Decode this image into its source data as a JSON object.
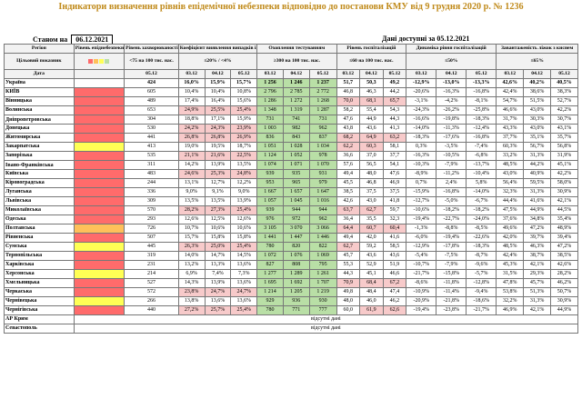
{
  "title": "Індикатори визначення рівнів епідемічної небезпеки відповідно до постанови КМУ від 9 грудня 2020 р. № 1236",
  "state_label": "Станом на",
  "state_date": "06.12.2021",
  "data_available": "Дані доступні за 05.12.2021",
  "headers": {
    "region": "Регіон",
    "level": "Рівень епіднебезпеки",
    "morbidity": "Рівень захворюваності",
    "morbidity_sub": "<75 на 100 тис. нас.",
    "coef": "Коефіцієнт виявлення випадків інфікування",
    "coef_sub": "≤20% / <4%",
    "testing": "Охоплення тестуванням",
    "testing_sub": "≥300 на 100 тис. нас.",
    "hosp": "Рівень госпіталізацій",
    "hosp_sub": "≤60 на 100 тис. нас.",
    "dyn": "Динаміка рівня госпіталізацій",
    "dyn_sub": "≤50%",
    "beds": "Завантаженість ліжок з киснем",
    "beds_sub": "≤65%",
    "target": "Цільовий показник",
    "date": "Дата",
    "date_single": "05.12",
    "dates": [
      "03.12",
      "04.12",
      "05.12"
    ]
  },
  "rows": [
    {
      "name": "Україна",
      "level": "",
      "m": "424",
      "c": [
        "16,0%",
        "15,9%",
        "15,7%"
      ],
      "t": [
        "1 256",
        "1 246",
        "1 237"
      ],
      "h": [
        "51,7",
        "50,3",
        "49,2"
      ],
      "d": [
        "-12,9%",
        "-13,0%",
        "-13,3%"
      ],
      "b": [
        "42,6%",
        "40,2%",
        "40,5%"
      ]
    },
    {
      "name": "КИЇВ",
      "level": "red",
      "m": "605",
      "c": [
        "10,4%",
        "10,4%",
        "10,8%"
      ],
      "t": [
        "2 796",
        "2 785",
        "2 772"
      ],
      "h": [
        "46,8",
        "46,3",
        "44,2"
      ],
      "d": [
        "-20,6%",
        "-16,3%",
        "-16,8%"
      ],
      "b": [
        "42,4%",
        "38,6%",
        "38,3%"
      ]
    },
    {
      "name": "Вінницька",
      "level": "red",
      "m": "489",
      "c": [
        "17,4%",
        "16,4%",
        "15,6%"
      ],
      "t": [
        "1 286",
        "1 272",
        "1 268"
      ],
      "h": [
        "70,0",
        "68,1",
        "65,7"
      ],
      "d": [
        "-3,1%",
        "-4,2%",
        "-8,1%"
      ],
      "b": [
        "54,7%",
        "51,5%",
        "52,7%"
      ]
    },
    {
      "name": "Волинська",
      "level": "red",
      "m": "653",
      "c": [
        "24,9%",
        "25,5%",
        "25,4%"
      ],
      "t": [
        "1 348",
        "1 319",
        "1 287"
      ],
      "h": [
        "58,2",
        "55,4",
        "54,3"
      ],
      "d": [
        "-24,3%",
        "-26,2%",
        "-25,8%"
      ],
      "b": [
        "46,6%",
        "43,0%",
        "42,2%"
      ]
    },
    {
      "name": "Дніпропетровська",
      "level": "red",
      "m": "304",
      "c": [
        "18,8%",
        "17,1%",
        "15,9%"
      ],
      "t": [
        "731",
        "741",
        "731"
      ],
      "h": [
        "47,6",
        "44,9",
        "44,3"
      ],
      "d": [
        "-16,6%",
        "-19,8%",
        "-18,3%"
      ],
      "b": [
        "31,7%",
        "30,3%",
        "30,7%"
      ]
    },
    {
      "name": "Донецька",
      "level": "red",
      "m": "530",
      "c": [
        "24,2%",
        "24,3%",
        "23,9%"
      ],
      "t": [
        "1 003",
        "982",
        "962"
      ],
      "h": [
        "43,8",
        "43,6",
        "41,3"
      ],
      "d": [
        "-14,0%",
        "-11,3%",
        "-12,4%"
      ],
      "b": [
        "43,3%",
        "43,0%",
        "43,1%"
      ]
    },
    {
      "name": "Житомирська",
      "level": "red",
      "m": "441",
      "c": [
        "26,8%",
        "26,8%",
        "26,9%"
      ],
      "t": [
        "836",
        "843",
        "837"
      ],
      "h": [
        "68,2",
        "64,9",
        "63,2"
      ],
      "d": [
        "-18,3%",
        "-17,6%",
        "-16,8%"
      ],
      "b": [
        "37,7%",
        "35,1%",
        "35,7%"
      ]
    },
    {
      "name": "Закарпатська",
      "level": "yellow",
      "m": "413",
      "c": [
        "19,0%",
        "19,5%",
        "18,7%"
      ],
      "t": [
        "1 051",
        "1 028",
        "1 034"
      ],
      "h": [
        "62,2",
        "60,3",
        "58,1"
      ],
      "d": [
        "0,3%",
        "-3,5%",
        "-7,4%"
      ],
      "b": [
        "60,3%",
        "56,7%",
        "56,8%"
      ]
    },
    {
      "name": "Запорізька",
      "level": "red",
      "m": "535",
      "c": [
        "21,1%",
        "21,6%",
        "22,5%"
      ],
      "t": [
        "1 124",
        "1 052",
        "978"
      ],
      "h": [
        "36,6",
        "37,0",
        "37,7"
      ],
      "d": [
        "-16,3%",
        "-10,5%",
        "-6,8%"
      ],
      "b": [
        "33,2%",
        "31,3%",
        "31,9%"
      ]
    },
    {
      "name": "Івано-Франківська",
      "level": "red",
      "m": "311",
      "c": [
        "14,2%",
        "13,9%",
        "13,5%"
      ],
      "t": [
        "1 074",
        "1 071",
        "1 070"
      ],
      "h": [
        "57,6",
        "56,5",
        "54,1"
      ],
      "d": [
        "-10,3%",
        "-7,9%",
        "-13,7%"
      ],
      "b": [
        "48,5%",
        "44,2%",
        "45,1%"
      ]
    },
    {
      "name": "Київська",
      "level": "red",
      "m": "483",
      "c": [
        "24,6%",
        "25,3%",
        "24,8%"
      ],
      "t": [
        "939",
        "935",
        "931"
      ],
      "h": [
        "49,4",
        "48,0",
        "47,6"
      ],
      "d": [
        "-8,9%",
        "-11,2%",
        "-10,4%"
      ],
      "b": [
        "43,0%",
        "40,9%",
        "42,2%"
      ]
    },
    {
      "name": "Кіровоградська",
      "level": "red",
      "m": "244",
      "c": [
        "13,1%",
        "12,7%",
        "12,2%"
      ],
      "t": [
        "953",
        "965",
        "979"
      ],
      "h": [
        "45,5",
        "46,8",
        "46,9"
      ],
      "d": [
        "0,7%",
        "2,4%",
        "5,8%"
      ],
      "b": [
        "56,4%",
        "59,5%",
        "58,0%"
      ]
    },
    {
      "name": "Луганська",
      "level": "red",
      "m": "336",
      "c": [
        "9,0%",
        "9,1%",
        "9,0%"
      ],
      "t": [
        "1 667",
        "1 657",
        "1 647"
      ],
      "h": [
        "38,5",
        "37,5",
        "37,5"
      ],
      "d": [
        "-15,9%",
        "-16,8%",
        "-14,0%"
      ],
      "b": [
        "32,3%",
        "31,3%",
        "30,9%"
      ]
    },
    {
      "name": "Львівська",
      "level": "red",
      "m": "309",
      "c": [
        "13,5%",
        "13,5%",
        "13,9%"
      ],
      "t": [
        "1 057",
        "1 045",
        "1 016"
      ],
      "h": [
        "42,6",
        "43,0",
        "41,8"
      ],
      "d": [
        "-12,7%",
        "-5,0%",
        "-6,7%"
      ],
      "b": [
        "44,4%",
        "41,6%",
        "42,1%"
      ]
    },
    {
      "name": "Миколаївська",
      "level": "red",
      "m": "570",
      "c": [
        "28,2%",
        "27,3%",
        "25,4%"
      ],
      "t": [
        "939",
        "944",
        "944"
      ],
      "h": [
        "63,7",
        "62,7",
        "59,7"
      ],
      "d": [
        "-10,6%",
        "-18,2%",
        "-18,2%"
      ],
      "b": [
        "47,5%",
        "44,9%",
        "44,5%"
      ]
    },
    {
      "name": "Одеська",
      "level": "red",
      "m": "293",
      "c": [
        "12,6%",
        "12,5%",
        "12,6%"
      ],
      "t": [
        "976",
        "972",
        "962"
      ],
      "h": [
        "36,4",
        "35,5",
        "32,3"
      ],
      "d": [
        "-19,4%",
        "-22,7%",
        "-24,0%"
      ],
      "b": [
        "37,6%",
        "34,8%",
        "35,4%"
      ]
    },
    {
      "name": "Полтавська",
      "level": "orange",
      "m": "726",
      "c": [
        "10,7%",
        "10,6%",
        "10,6%"
      ],
      "t": [
        "3 105",
        "3 070",
        "3 066"
      ],
      "h": [
        "64,4",
        "60,7",
        "60,4"
      ],
      "d": [
        "-1,3%",
        "-8,8%",
        "-8,5%"
      ],
      "b": [
        "49,6%",
        "47,2%",
        "48,9%"
      ]
    },
    {
      "name": "Рівненська",
      "level": "red",
      "m": "507",
      "c": [
        "15,7%",
        "15,8%",
        "15,8%"
      ],
      "t": [
        "1 441",
        "1 447",
        "1 446"
      ],
      "h": [
        "49,4",
        "42,0",
        "41,6"
      ],
      "d": [
        "-6,0%",
        "-19,4%",
        "-22,6%"
      ],
      "b": [
        "42,0%",
        "39,7%",
        "39,4%"
      ]
    },
    {
      "name": "Сумська",
      "level": "yellow",
      "m": "445",
      "c": [
        "26,3%",
        "25,0%",
        "25,4%"
      ],
      "t": [
        "780",
        "820",
        "822"
      ],
      "h": [
        "62,7",
        "59,2",
        "58,5"
      ],
      "d": [
        "-12,9%",
        "-17,8%",
        "-18,3%"
      ],
      "b": [
        "48,5%",
        "46,3%",
        "47,2%"
      ]
    },
    {
      "name": "Тернопільська",
      "level": "red",
      "m": "319",
      "c": [
        "14,0%",
        "14,7%",
        "14,5%"
      ],
      "t": [
        "1 072",
        "1 076",
        "1 069"
      ],
      "h": [
        "45,7",
        "43,6",
        "43,6"
      ],
      "d": [
        "-5,4%",
        "-7,5%",
        "-8,7%"
      ],
      "b": [
        "42,4%",
        "38,7%",
        "38,5%"
      ]
    },
    {
      "name": "Харківська",
      "level": "red",
      "m": "231",
      "c": [
        "13,2%",
        "13,3%",
        "13,6%"
      ],
      "t": [
        "827",
        "808",
        "795"
      ],
      "h": [
        "55,3",
        "52,9",
        "51,9"
      ],
      "d": [
        "-10,7%",
        "-7,9%",
        "-9,6%"
      ],
      "b": [
        "45,3%",
        "42,1%",
        "42,6%"
      ]
    },
    {
      "name": "Херсонська",
      "level": "yellow",
      "m": "214",
      "c": [
        "6,9%",
        "7,4%",
        "7,3%"
      ],
      "t": [
        "1 277",
        "1 289",
        "1 261"
      ],
      "h": [
        "44,3",
        "45,1",
        "46,6"
      ],
      "d": [
        "-21,7%",
        "-15,8%",
        "-5,7%"
      ],
      "b": [
        "31,5%",
        "29,3%",
        "28,2%"
      ]
    },
    {
      "name": "Хмельницька",
      "level": "red",
      "m": "527",
      "c": [
        "14,3%",
        "13,9%",
        "13,6%"
      ],
      "t": [
        "1 695",
        "1 692",
        "1 707"
      ],
      "h": [
        "70,9",
        "68,4",
        "67,2"
      ],
      "d": [
        "-8,6%",
        "-11,8%",
        "-12,8%"
      ],
      "b": [
        "47,8%",
        "45,7%",
        "46,2%"
      ]
    },
    {
      "name": "Черкаська",
      "level": "red",
      "m": "572",
      "c": [
        "23,8%",
        "24,7%",
        "24,7%"
      ],
      "t": [
        "1 214",
        "1 205",
        "1 219"
      ],
      "h": [
        "49,8",
        "48,4",
        "47,4"
      ],
      "d": [
        "-10,9%",
        "-11,4%",
        "-9,4%"
      ],
      "b": [
        "53,8%",
        "51,3%",
        "50,7%"
      ]
    },
    {
      "name": "Чернівецька",
      "level": "yellow",
      "m": "266",
      "c": [
        "13,8%",
        "13,6%",
        "13,6%"
      ],
      "t": [
        "929",
        "936",
        "930"
      ],
      "h": [
        "48,0",
        "46,0",
        "46,2"
      ],
      "d": [
        "-20,9%",
        "-21,8%",
        "-18,6%"
      ],
      "b": [
        "32,2%",
        "31,3%",
        "30,9%"
      ]
    },
    {
      "name": "Чернігівська",
      "level": "red",
      "m": "440",
      "c": [
        "27,2%",
        "25,7%",
        "25,4%"
      ],
      "t": [
        "780",
        "771",
        "777"
      ],
      "h": [
        "60,0",
        "61,9",
        "62,6"
      ],
      "d": [
        "-19,4%",
        "-23,8%",
        "-21,7%"
      ],
      "b": [
        "46,9%",
        "42,1%",
        "44,9%"
      ]
    }
  ],
  "absent": [
    {
      "name": "АР Крим",
      "text": "відсутні дані"
    },
    {
      "name": "Севастополь",
      "text": "відсутні дані"
    }
  ]
}
